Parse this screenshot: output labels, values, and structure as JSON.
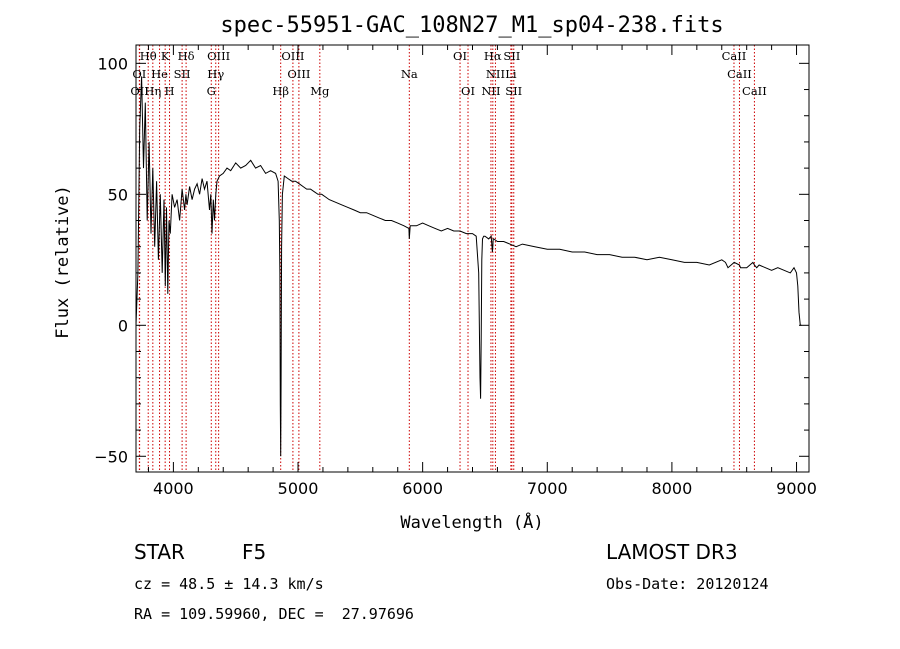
{
  "chart_data": {
    "type": "line",
    "title": "spec-55951-GAC_108N27_M1_sp04-238.fits",
    "xlabel": "Wavelength (Å)",
    "ylabel": "Flux (relative)",
    "xlim": [
      3700,
      9100
    ],
    "ylim": [
      -56,
      107
    ],
    "x_ticks": [
      4000,
      5000,
      6000,
      7000,
      8000,
      9000
    ],
    "y_ticks": [
      -50,
      0,
      50,
      100
    ],
    "series": [
      {
        "name": "flux",
        "x": [
          3700,
          3715,
          3730,
          3745,
          3760,
          3775,
          3790,
          3805,
          3820,
          3835,
          3850,
          3865,
          3880,
          3895,
          3910,
          3925,
          3935,
          3945,
          3955,
          3965,
          3975,
          3990,
          4010,
          4030,
          4050,
          4070,
          4090,
          4100,
          4110,
          4130,
          4150,
          4170,
          4190,
          4210,
          4230,
          4250,
          4270,
          4290,
          4300,
          4310,
          4320,
          4330,
          4340,
          4350,
          4370,
          4400,
          4430,
          4460,
          4500,
          4540,
          4580,
          4620,
          4660,
          4700,
          4740,
          4780,
          4820,
          4840,
          4850,
          4855,
          4858,
          4861,
          4864,
          4868,
          4875,
          4890,
          4920,
          4950,
          4980,
          5010,
          5040,
          5070,
          5100,
          5130,
          5160,
          5190,
          5220,
          5250,
          5300,
          5350,
          5400,
          5450,
          5500,
          5550,
          5600,
          5650,
          5700,
          5750,
          5800,
          5850,
          5890,
          5893,
          5900,
          5950,
          6000,
          6050,
          6100,
          6150,
          6200,
          6250,
          6300,
          6350,
          6400,
          6430,
          6450,
          6460,
          6465,
          6470,
          6475,
          6480,
          6490,
          6500,
          6530,
          6550,
          6560,
          6563,
          6566,
          6570,
          6600,
          6650,
          6700,
          6750,
          6800,
          6900,
          7000,
          7100,
          7200,
          7300,
          7400,
          7500,
          7600,
          7700,
          7800,
          7900,
          8000,
          8100,
          8200,
          8300,
          8400,
          8430,
          8450,
          8500,
          8542,
          8550,
          8600,
          8650,
          8662,
          8680,
          8700,
          8750,
          8800,
          8850,
          8900,
          8950,
          8980,
          9000,
          9010,
          9020,
          9030,
          9040
        ],
        "y": [
          0,
          20,
          75,
          95,
          60,
          85,
          40,
          70,
          35,
          60,
          30,
          55,
          25,
          50,
          20,
          48,
          15,
          45,
          12,
          40,
          35,
          50,
          45,
          48,
          40,
          52,
          44,
          50,
          46,
          53,
          48,
          52,
          54,
          50,
          56,
          52,
          55,
          44,
          50,
          35,
          48,
          40,
          50,
          55,
          57,
          58,
          60,
          59,
          62,
          60,
          61,
          63,
          60,
          61,
          58,
          59,
          58,
          55,
          40,
          20,
          -30,
          -50,
          -20,
          30,
          50,
          57,
          56,
          55,
          55,
          54,
          53,
          52,
          52,
          51,
          50,
          50,
          49,
          48,
          47,
          46,
          45,
          44,
          43,
          43,
          42,
          41,
          40,
          40,
          39,
          38,
          37,
          33,
          38,
          38,
          39,
          38,
          37,
          36,
          37,
          36,
          36,
          35,
          35,
          34,
          20,
          -20,
          -28,
          -5,
          25,
          33,
          34,
          34,
          33,
          34,
          28,
          30,
          33,
          33,
          32,
          32,
          31,
          30,
          31,
          30,
          29,
          29,
          28,
          28,
          27,
          27,
          26,
          26,
          25,
          26,
          25,
          24,
          24,
          23,
          25,
          24,
          22,
          24,
          23,
          22,
          22,
          24,
          23,
          22,
          23,
          22,
          21,
          22,
          21,
          20,
          22,
          20,
          15,
          5,
          0,
          0
        ]
      }
    ],
    "lines_row1": [
      {
        "label": "Hθ",
        "wl": 3798
      },
      {
        "label": "K",
        "wl": 3934
      },
      {
        "label": "Hδ",
        "wl": 4102
      },
      {
        "label": "OIII",
        "wl": 4363
      },
      {
        "label": "OIII",
        "wl": 4959
      },
      {
        "label": "OI",
        "wl": 6300
      },
      {
        "label": "Hα",
        "wl": 6563
      },
      {
        "label": "SII",
        "wl": 6716
      },
      {
        "label": "CaII",
        "wl": 8498
      }
    ],
    "lines_row2": [
      {
        "label": "OI",
        "wl": 3727
      },
      {
        "label": "He",
        "wl": 3889
      },
      {
        "label": "SII",
        "wl": 4070
      },
      {
        "label": "Hγ",
        "wl": 4340
      },
      {
        "label": "OIII",
        "wl": 5007
      },
      {
        "label": "Na",
        "wl": 5893
      },
      {
        "label": "NII",
        "wl": 6584
      },
      {
        "label": "Li",
        "wl": 6708
      },
      {
        "label": "CaII",
        "wl": 8542
      }
    ],
    "lines_row3": [
      {
        "label": "OII",
        "wl": 3729
      },
      {
        "label": "Hη",
        "wl": 3835
      },
      {
        "label": "H",
        "wl": 3969
      },
      {
        "label": "G",
        "wl": 4304
      },
      {
        "label": "Hβ",
        "wl": 4861
      },
      {
        "label": "Mg",
        "wl": 5175
      },
      {
        "label": "OI",
        "wl": 6364
      },
      {
        "label": "NII",
        "wl": 6548
      },
      {
        "label": "SII",
        "wl": 6731
      },
      {
        "label": "CaII",
        "wl": 8662
      }
    ],
    "line_color": "#cc0000"
  },
  "info": {
    "class": "STAR",
    "subclass": "F5",
    "survey": "LAMOST DR3",
    "cz": "cz = 48.5 ± 14.3 km/s",
    "obs_date": "Obs-Date: 20120124",
    "radec": "RA = 109.59960, DEC =  27.97696"
  }
}
